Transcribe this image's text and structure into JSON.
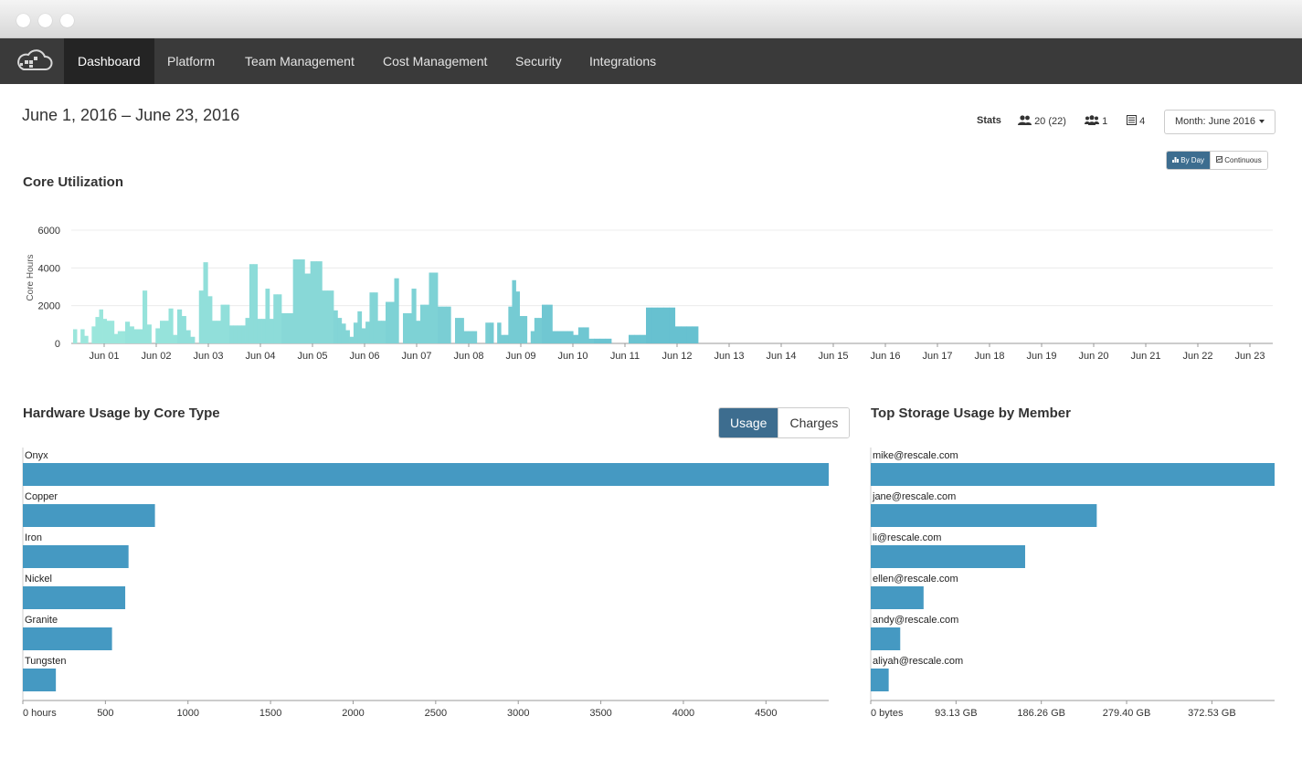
{
  "window": {
    "controls": [
      "close",
      "minimize",
      "maximize"
    ]
  },
  "nav": {
    "logo_icon": "cloud-logo-icon",
    "items": [
      {
        "label": "Dashboard",
        "active": true
      },
      {
        "label": "Platform"
      },
      {
        "label": "Team Management"
      },
      {
        "label": "Cost Management"
      },
      {
        "label": "Security"
      },
      {
        "label": "Integrations"
      }
    ]
  },
  "header": {
    "date_range": "June 1, 2016 – June 23, 2016",
    "stats_label": "Stats",
    "stat_users": "20 (22)",
    "stat_teams": "1",
    "stat_projects": "4",
    "month_button": "Month: June 2016"
  },
  "view_toggle": {
    "by_day": "By Day",
    "continuous": "Continuous",
    "selected": "By Day"
  },
  "core_utilization": {
    "title": "Core Utilization",
    "chart_data": {
      "type": "bar",
      "ylabel": "Core Hours",
      "ylim": [
        0,
        6000
      ],
      "yticks": [
        "6000",
        "4000",
        "2000",
        "0"
      ],
      "categories": [
        "Jun 01",
        "Jun 02",
        "Jun 03",
        "Jun 04",
        "Jun 05",
        "Jun 06",
        "Jun 07",
        "Jun 08",
        "Jun 09",
        "Jun 10",
        "Jun 11",
        "Jun 12",
        "Jun 13",
        "Jun 14",
        "Jun 15",
        "Jun 16",
        "Jun 17",
        "Jun 18",
        "Jun 19",
        "Jun 20",
        "Jun 21",
        "Jun 22",
        "Jun 23"
      ],
      "grid": true,
      "values": [
        [
          750,
          0,
          750,
          400,
          0,
          900,
          1400,
          1800,
          1300,
          1200,
          1200,
          500,
          650,
          650
        ],
        [
          1150,
          900,
          750,
          750,
          2800,
          1000,
          0,
          800,
          1200,
          1200,
          1850,
          450
        ],
        [
          1800,
          1450,
          700,
          350,
          0,
          2800,
          4300,
          2500,
          1200,
          1200,
          2050,
          2050
        ],
        [
          950,
          950,
          950,
          950,
          1350,
          4200,
          4200,
          1300,
          1300,
          2900,
          1300,
          2600,
          2600
        ],
        [
          1600,
          1600,
          4450,
          4450,
          3700,
          4350,
          4350,
          2800,
          2800
        ],
        [
          1750,
          1350,
          1050,
          700,
          350,
          1100,
          1700,
          800,
          1150,
          2700,
          2700,
          1200,
          1200
        ],
        [
          2200,
          2200,
          3450,
          0,
          1600,
          1600,
          2900,
          1200,
          2050,
          2050,
          3750,
          3750
        ],
        [
          1950,
          1950,
          1950,
          0,
          1350,
          1350,
          650,
          650,
          650,
          0,
          0,
          1100
        ],
        [
          1100,
          0,
          1100,
          450,
          450,
          1950,
          3350,
          2750,
          1450,
          1450,
          0,
          650,
          1350,
          1350
        ],
        [
          2050,
          2050,
          650,
          650,
          650,
          650,
          450,
          850,
          850,
          250
        ],
        [
          250,
          250,
          250,
          0,
          0,
          0,
          450,
          450,
          450
        ],
        [
          1900,
          1900,
          1900,
          1900,
          1900,
          900,
          900,
          900,
          900
        ]
      ]
    }
  },
  "hardware_usage": {
    "title": "Hardware Usage by Core Type",
    "usage_label": "Usage",
    "charges_label": "Charges",
    "selected": "Usage",
    "chart_data": {
      "type": "bar",
      "orientation": "horizontal",
      "categories": [
        "Onyx",
        "Copper",
        "Iron",
        "Nickel",
        "Granite",
        "Tungsten"
      ],
      "values": [
        4880,
        800,
        640,
        620,
        540,
        200
      ],
      "xlim": [
        0,
        4880
      ],
      "xticks": [
        {
          "value": 0,
          "label": "0 hours"
        },
        {
          "value": 500,
          "label": "500"
        },
        {
          "value": 1000,
          "label": "1000"
        },
        {
          "value": 1500,
          "label": "1500"
        },
        {
          "value": 2000,
          "label": "2000"
        },
        {
          "value": 2500,
          "label": "2500"
        },
        {
          "value": 3000,
          "label": "3000"
        },
        {
          "value": 3500,
          "label": "3500"
        },
        {
          "value": 4000,
          "label": "4000"
        },
        {
          "value": 4500,
          "label": "4500"
        }
      ],
      "bar_color": "#4599c2"
    }
  },
  "storage_usage": {
    "title": "Top Storage Usage by Member",
    "chart_data": {
      "type": "bar",
      "orientation": "horizontal",
      "categories": [
        "mike@rescale.com",
        "jane@rescale.com",
        "li@rescale.com",
        "ellen@rescale.com",
        "andy@rescale.com",
        "aliyah@rescale.com"
      ],
      "values": [
        441,
        246.8,
        168.6,
        57.7,
        32.2,
        19.6
      ],
      "value_unit": "GB",
      "xlim": [
        0,
        441
      ],
      "xticks": [
        {
          "value": 0,
          "label": "0 bytes"
        },
        {
          "value": 93.13,
          "label": "93.13 GB"
        },
        {
          "value": 186.26,
          "label": "186.26 GB"
        },
        {
          "value": 279.4,
          "label": "279.40 GB"
        },
        {
          "value": 372.53,
          "label": "372.53 GB"
        }
      ],
      "bar_color": "#4599c2"
    }
  }
}
